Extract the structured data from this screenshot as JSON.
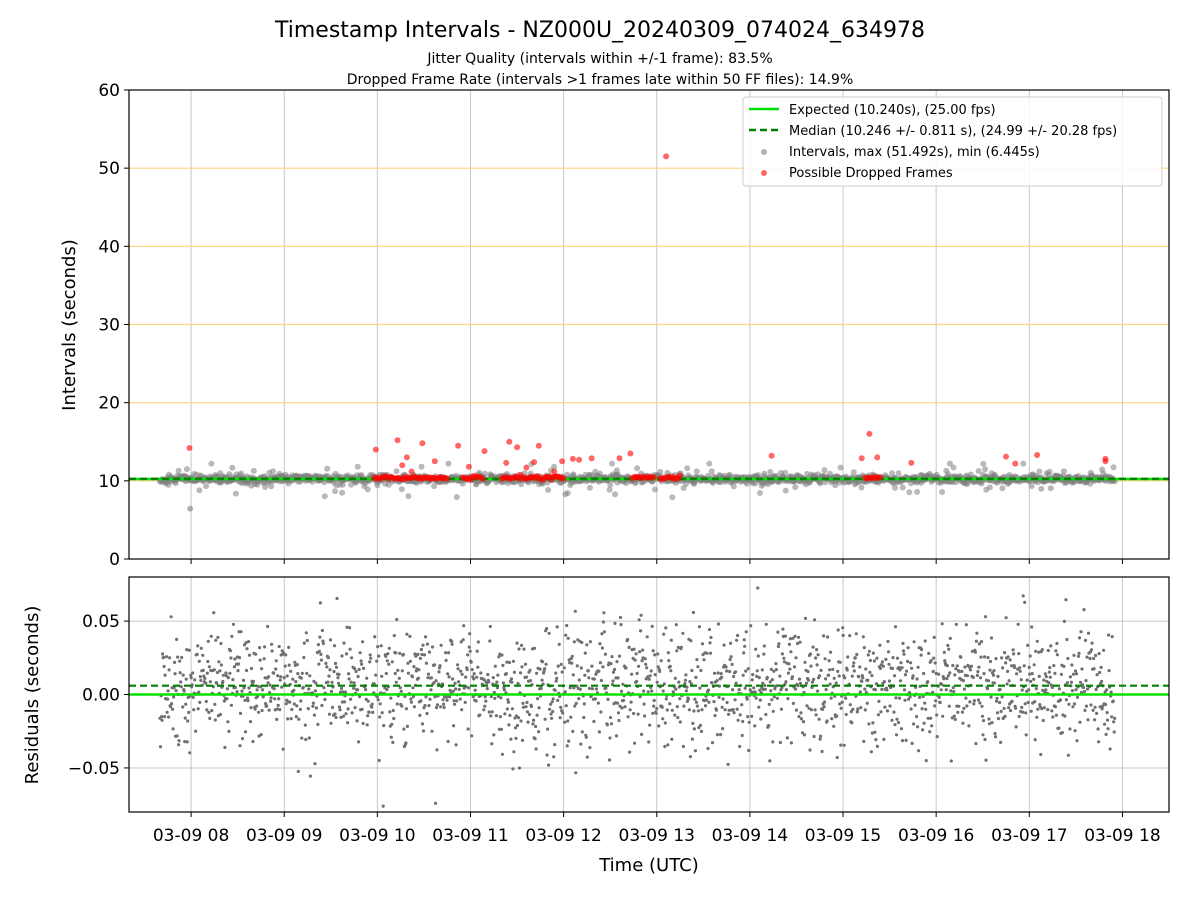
{
  "title": "Timestamp Intervals - NZ000U_20240309_074024_634978",
  "subtitle_1": "Jitter Quality (intervals within +/-1 frame): 83.5%",
  "subtitle_2": "Dropped Frame Rate (intervals >1 frames late within 50 FF files): 14.9%",
  "colors": {
    "expected": "#00e000",
    "median": "#008000",
    "intervals": "#808080",
    "dropped": "#ff0000",
    "threshold": "#ffd580",
    "grid": "#c8c8c8"
  },
  "chart_data": [
    {
      "type": "scatter",
      "ylabel": "Intervals (seconds)",
      "xlim": [
        "03-09 07:20",
        "03-09 18:30"
      ],
      "ylim": [
        0,
        60
      ],
      "yticks": [
        0,
        10,
        20,
        30,
        40,
        50,
        60
      ],
      "grid": true,
      "legend_position": "upper-right",
      "threshold_lines": [
        10,
        20,
        30,
        40,
        50
      ],
      "expected": {
        "name": "Expected (10.240s), (25.00 fps)",
        "value": 10.24
      },
      "median": {
        "name": "Median (10.246 +/- 0.811 s), (24.99 +/- 20.28 fps)",
        "value": 10.246
      },
      "intervals": {
        "name": "Intervals, max (51.492s), min (6.445s)",
        "max": 51.492,
        "min": 6.445,
        "t_start": "03-09 07:40",
        "t_end": "03-09 17:55"
      },
      "dropped": {
        "name": "Possible Dropped Frames",
        "points": [
          [
            "03-09 07:59",
            14.2
          ],
          [
            "03-09 09:59",
            14.0
          ],
          [
            "03-09 10:13",
            15.2
          ],
          [
            "03-09 10:16",
            12.0
          ],
          [
            "03-09 10:19",
            13.0
          ],
          [
            "03-09 10:22",
            11.2
          ],
          [
            "03-09 10:29",
            14.8
          ],
          [
            "03-09 10:37",
            12.5
          ],
          [
            "03-09 10:52",
            14.5
          ],
          [
            "03-09 10:59",
            11.8
          ],
          [
            "03-09 11:09",
            13.8
          ],
          [
            "03-09 11:23",
            12.3
          ],
          [
            "03-09 11:25",
            15.0
          ],
          [
            "03-09 11:30",
            14.3
          ],
          [
            "03-09 11:36",
            11.7
          ],
          [
            "03-09 11:41",
            12.4
          ],
          [
            "03-09 11:44",
            14.5
          ],
          [
            "03-09 11:54",
            11.2
          ],
          [
            "03-09 11:59",
            12.5
          ],
          [
            "03-09 12:06",
            12.8
          ],
          [
            "03-09 12:10",
            12.7
          ],
          [
            "03-09 12:18",
            12.9
          ],
          [
            "03-09 12:36",
            12.9
          ],
          [
            "03-09 12:43",
            13.5
          ],
          [
            "03-09 13:06",
            51.5
          ],
          [
            "03-09 14:14",
            13.2
          ],
          [
            "03-09 15:12",
            12.9
          ],
          [
            "03-09 15:17",
            16.0
          ],
          [
            "03-09 15:22",
            13.0
          ],
          [
            "03-09 15:44",
            12.3
          ],
          [
            "03-09 16:45",
            13.1
          ],
          [
            "03-09 16:51",
            12.2
          ],
          [
            "03-09 17:05",
            13.3
          ],
          [
            "03-09 17:49",
            12.8
          ],
          [
            "03-09 17:49",
            12.5
          ]
        ],
        "baseline_clusters": [
          [
            "03-09 09:58",
            "03-09 10:45"
          ],
          [
            "03-09 10:55",
            "03-09 11:08"
          ],
          [
            "03-09 11:20",
            "03-09 12:00"
          ],
          [
            "03-09 12:44",
            "03-09 12:58"
          ],
          [
            "03-09 13:02",
            "03-09 13:15"
          ],
          [
            "03-09 15:14",
            "03-09 15:24"
          ]
        ]
      }
    },
    {
      "type": "scatter",
      "xlabel": "Time (UTC)",
      "ylabel": "Residuals (seconds)",
      "ylim": [
        -0.08,
        0.08
      ],
      "yticks": [
        0.05,
        0.0,
        -0.05
      ],
      "ytick_labels": [
        "0.05",
        "0.00",
        "−0.05"
      ],
      "xticks": [
        "03-09 08",
        "03-09 09",
        "03-09 10",
        "03-09 11",
        "03-09 12",
        "03-09 13",
        "03-09 14",
        "03-09 15",
        "03-09 16",
        "03-09 17",
        "03-09 18"
      ],
      "expected": 0.0,
      "median": 0.006,
      "residual_std": 0.02
    }
  ]
}
